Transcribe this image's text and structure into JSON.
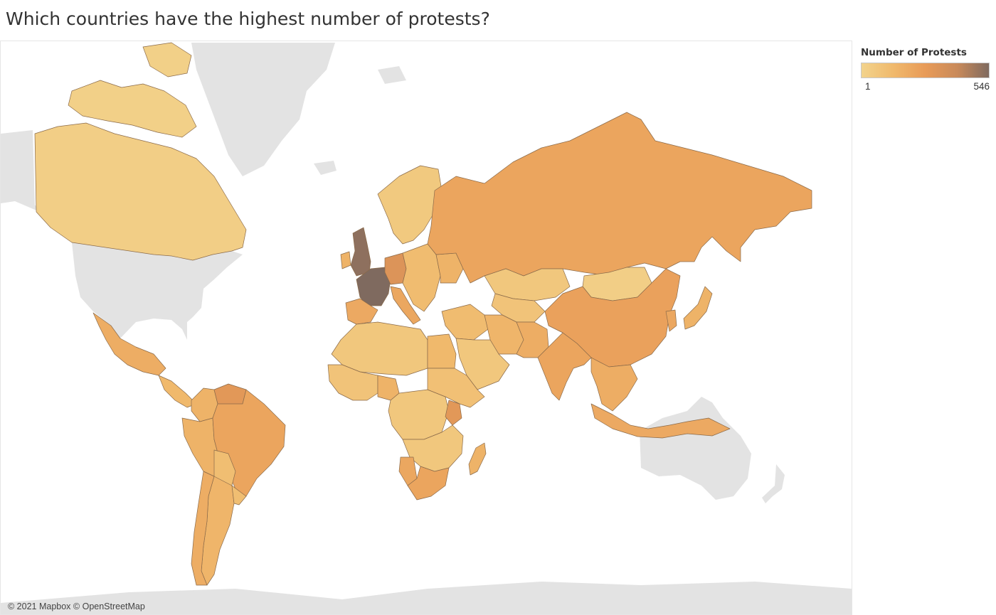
{
  "title": "Which countries have the highest number of protests?",
  "legend": {
    "title": "Number of Protests",
    "min_label": "1",
    "max_label": "546",
    "min_value": 1,
    "max_value": 546,
    "gradient_colors": [
      "#f2d38c",
      "#f0b96c",
      "#e89b58",
      "#c98a5a",
      "#7f6a5f"
    ]
  },
  "no_data_color": "#e3e3e3",
  "attribution": "© 2021 Mapbox © OpenStreetMap",
  "regions": [
    {
      "id": "canada",
      "level": 0.05
    },
    {
      "id": "alaska-north-islands",
      "level": 0.03
    },
    {
      "id": "greenland",
      "level": 0.0
    },
    {
      "id": "usa",
      "level": null
    },
    {
      "id": "mexico",
      "level": 0.35
    },
    {
      "id": "central-america",
      "level": 0.25
    },
    {
      "id": "colombia",
      "level": 0.3
    },
    {
      "id": "venezuela",
      "level": 0.55
    },
    {
      "id": "ecuador-peru",
      "level": 0.3
    },
    {
      "id": "brazil",
      "level": 0.42
    },
    {
      "id": "bolivia-paraguay",
      "level": 0.2
    },
    {
      "id": "argentina",
      "level": 0.28
    },
    {
      "id": "chile",
      "level": 0.35
    },
    {
      "id": "uruguay",
      "level": 0.2
    },
    {
      "id": "uk",
      "level": 0.95
    },
    {
      "id": "ireland",
      "level": 0.3
    },
    {
      "id": "france",
      "level": 1.0
    },
    {
      "id": "spain-portugal",
      "level": 0.38
    },
    {
      "id": "germany",
      "level": 0.6
    },
    {
      "id": "italy",
      "level": 0.4
    },
    {
      "id": "scandinavia",
      "level": 0.1
    },
    {
      "id": "eastern-europe",
      "level": 0.22
    },
    {
      "id": "ukraine",
      "level": 0.3
    },
    {
      "id": "russia",
      "level": 0.42
    },
    {
      "id": "kazakhstan",
      "level": 0.12
    },
    {
      "id": "central-asia",
      "level": 0.15
    },
    {
      "id": "mongolia",
      "level": 0.05
    },
    {
      "id": "china",
      "level": 0.45
    },
    {
      "id": "japan",
      "level": 0.3
    },
    {
      "id": "korea",
      "level": 0.4
    },
    {
      "id": "middle-east",
      "level": 0.22
    },
    {
      "id": "iran",
      "level": 0.28
    },
    {
      "id": "arabia",
      "level": 0.12
    },
    {
      "id": "india",
      "level": 0.42
    },
    {
      "id": "pakistan-afghanistan",
      "level": 0.35
    },
    {
      "id": "southeast-asia",
      "level": 0.35
    },
    {
      "id": "indonesia",
      "level": 0.38
    },
    {
      "id": "north-africa",
      "level": 0.12
    },
    {
      "id": "egypt",
      "level": 0.25
    },
    {
      "id": "west-africa",
      "level": 0.15
    },
    {
      "id": "nigeria",
      "level": 0.3
    },
    {
      "id": "central-africa",
      "level": 0.12
    },
    {
      "id": "east-africa",
      "level": 0.18
    },
    {
      "id": "kenya",
      "level": 0.55
    },
    {
      "id": "southern-africa",
      "level": 0.12
    },
    {
      "id": "namibia",
      "level": 0.4
    },
    {
      "id": "south-africa",
      "level": 0.42
    },
    {
      "id": "madagascar",
      "level": 0.3
    },
    {
      "id": "australia",
      "level": null
    },
    {
      "id": "new-zealand",
      "level": null
    },
    {
      "id": "antarctica",
      "level": null
    }
  ]
}
